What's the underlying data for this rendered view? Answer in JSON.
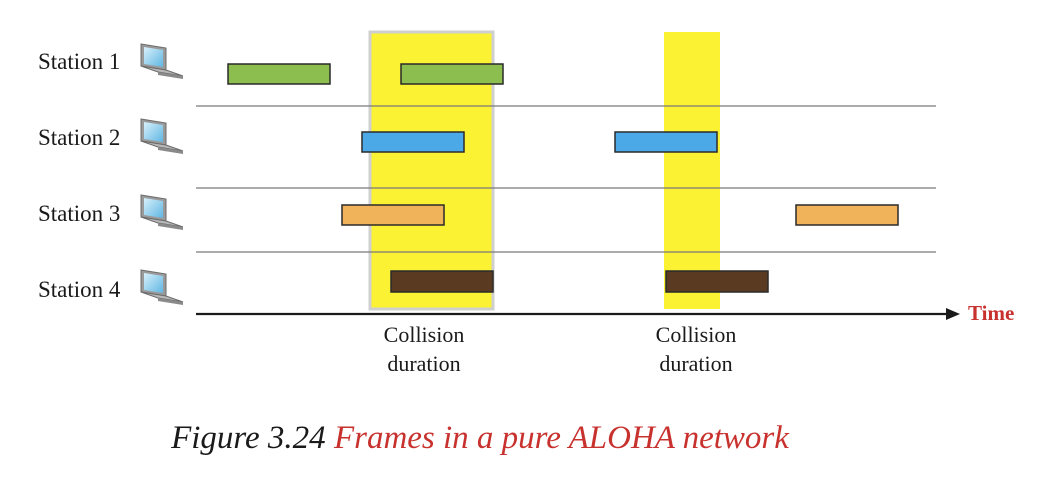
{
  "stations": [
    "Station 1",
    "Station 2",
    "Station 3",
    "Station 4"
  ],
  "axis_label": "Time",
  "collision_labels": [
    {
      "line1": "Collision",
      "line2": "duration"
    },
    {
      "line1": "Collision",
      "line2": "duration"
    }
  ],
  "caption": {
    "prefix": "Figure 3.24",
    "title": "Frames in a pure ALOHA network"
  },
  "colors": {
    "station_1_frame": "#8bbd4f",
    "station_2_frame": "#4aa9e6",
    "station_3_frame": "#f0b35a",
    "station_4_frame": "#5a3a20",
    "collision_highlight": "#fbf233",
    "accent_red": "#c8322e"
  },
  "icons": [
    "laptop-icon",
    "laptop-icon",
    "laptop-icon",
    "laptop-icon"
  ]
}
